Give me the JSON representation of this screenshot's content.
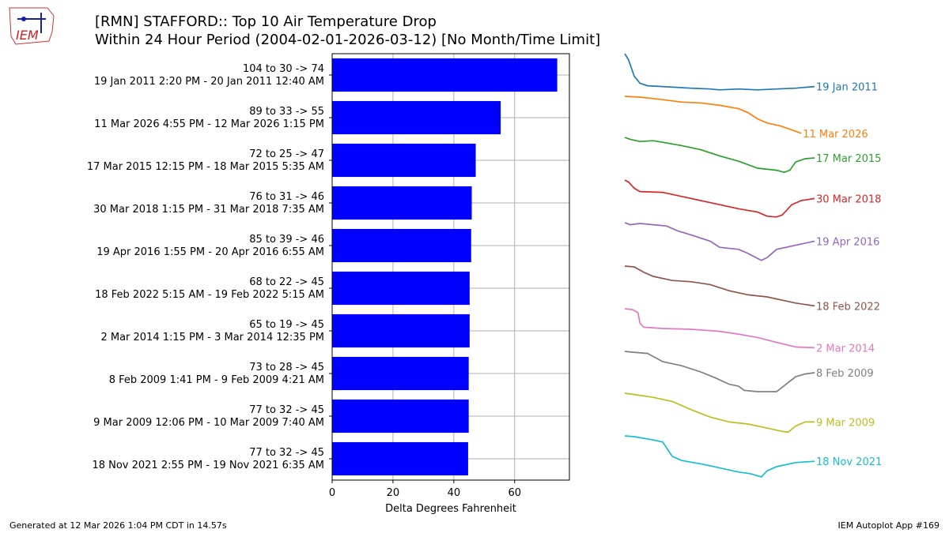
{
  "title": {
    "line1": "[RMN] STAFFORD:: Top 10 Air Temperature Drop",
    "line2": "Within 24 Hour Period (2004-02-01-2026-03-12) [No Month/Time Limit]"
  },
  "logo": {
    "text": "IEM",
    "color": "#cc2222"
  },
  "footer": {
    "left": "Generated at 12 Mar 2026 1:04 PM CDT in 14.57s",
    "right": "IEM Autoplot App #169"
  },
  "chart_data": {
    "type": "bar",
    "orientation": "horizontal",
    "xlabel": "Delta Degrees Fahrenheit",
    "xlim": [
      0,
      78
    ],
    "xticks": [
      0,
      20,
      40,
      60
    ],
    "grid": true,
    "bar_color": "#0000ff",
    "categories": [
      {
        "line1": "104 to 30 -> 74",
        "line2": "19 Jan 2011 2:20 PM - 20 Jan 2011 12:40 AM"
      },
      {
        "line1": "89 to 33 -> 55",
        "line2": "11 Mar 2026 4:55 PM - 12 Mar 2026 1:15 PM"
      },
      {
        "line1": "72 to 25 -> 47",
        "line2": "17 Mar 2015 12:15 PM - 18 Mar 2015 5:35 AM"
      },
      {
        "line1": "76 to 31 -> 46",
        "line2": "30 Mar 2018 1:15 PM - 31 Mar 2018 7:35 AM"
      },
      {
        "line1": "85 to 39 -> 46",
        "line2": "19 Apr 2016 1:55 PM - 20 Apr 2016 6:55 AM"
      },
      {
        "line1": "68 to 22 -> 45",
        "line2": "18 Feb 2022 5:15 AM - 19 Feb 2022 5:15 AM"
      },
      {
        "line1": "65 to 19 -> 45",
        "line2": "2 Mar 2014 1:15 PM - 3 Mar 2014 12:35 PM"
      },
      {
        "line1": "73 to 28 -> 45",
        "line2": "8 Feb 2009 1:41 PM - 9 Feb 2009 4:21 AM"
      },
      {
        "line1": "77 to 32 -> 45",
        "line2": "9 Mar 2009 12:06 PM - 10 Mar 2009 7:40 AM"
      },
      {
        "line1": "77 to 32 -> 45",
        "line2": "18 Nov 2021 2:55 PM - 19 Nov 2021 6:35 AM"
      }
    ],
    "values": [
      74,
      55.4,
      47.2,
      45.9,
      45.7,
      45.2,
      45.2,
      44.9,
      44.9,
      44.7
    ],
    "sparklines": [
      {
        "label": "19 Jan 2011",
        "color": "#1f77b4",
        "points": [
          [
            0,
            0
          ],
          [
            0.02,
            0.15
          ],
          [
            0.05,
            0.55
          ],
          [
            0.08,
            0.72
          ],
          [
            0.12,
            0.78
          ],
          [
            0.2,
            0.8
          ],
          [
            0.35,
            0.84
          ],
          [
            0.45,
            0.86
          ],
          [
            0.5,
            0.88
          ],
          [
            0.6,
            0.86
          ],
          [
            0.7,
            0.88
          ],
          [
            0.8,
            0.86
          ],
          [
            0.9,
            0.84
          ],
          [
            0.95,
            0.82
          ],
          [
            1,
            0.8
          ]
        ]
      },
      {
        "label": "11 Mar 2026",
        "color": "#ff7f0e",
        "points": [
          [
            0,
            0
          ],
          [
            0.08,
            0.02
          ],
          [
            0.2,
            0.08
          ],
          [
            0.3,
            0.14
          ],
          [
            0.4,
            0.16
          ],
          [
            0.5,
            0.22
          ],
          [
            0.55,
            0.26
          ],
          [
            0.6,
            0.3
          ],
          [
            0.65,
            0.4
          ],
          [
            0.7,
            0.55
          ],
          [
            0.75,
            0.65
          ],
          [
            0.82,
            0.72
          ],
          [
            0.9,
            0.85
          ],
          [
            0.93,
            0.9
          ]
        ]
      },
      {
        "label": "17 Mar 2015",
        "color": "#2ca02c",
        "points": [
          [
            0,
            0
          ],
          [
            0.03,
            0.05
          ],
          [
            0.08,
            0.1
          ],
          [
            0.15,
            0.08
          ],
          [
            0.2,
            0.12
          ],
          [
            0.3,
            0.2
          ],
          [
            0.4,
            0.3
          ],
          [
            0.5,
            0.45
          ],
          [
            0.6,
            0.58
          ],
          [
            0.7,
            0.75
          ],
          [
            0.8,
            0.8
          ],
          [
            0.84,
            0.85
          ],
          [
            0.87,
            0.8
          ],
          [
            0.9,
            0.6
          ],
          [
            0.95,
            0.52
          ],
          [
            1,
            0.5
          ]
        ]
      },
      {
        "label": "30 Mar 2018",
        "color": "#d62728",
        "points": [
          [
            0,
            0
          ],
          [
            0.02,
            0.05
          ],
          [
            0.05,
            0.2
          ],
          [
            0.08,
            0.28
          ],
          [
            0.2,
            0.3
          ],
          [
            0.3,
            0.4
          ],
          [
            0.4,
            0.5
          ],
          [
            0.5,
            0.6
          ],
          [
            0.6,
            0.7
          ],
          [
            0.7,
            0.78
          ],
          [
            0.75,
            0.88
          ],
          [
            0.8,
            0.9
          ],
          [
            0.83,
            0.85
          ],
          [
            0.88,
            0.6
          ],
          [
            0.93,
            0.5
          ],
          [
            1,
            0.45
          ]
        ]
      },
      {
        "label": "19 Apr 2016",
        "color": "#9467bd",
        "points": [
          [
            0,
            0
          ],
          [
            0.03,
            0.05
          ],
          [
            0.08,
            0.02
          ],
          [
            0.15,
            0.05
          ],
          [
            0.22,
            0.08
          ],
          [
            0.28,
            0.2
          ],
          [
            0.35,
            0.3
          ],
          [
            0.45,
            0.45
          ],
          [
            0.5,
            0.6
          ],
          [
            0.6,
            0.65
          ],
          [
            0.65,
            0.75
          ],
          [
            0.72,
            0.92
          ],
          [
            0.75,
            0.85
          ],
          [
            0.8,
            0.65
          ],
          [
            0.9,
            0.55
          ],
          [
            1,
            0.45
          ]
        ]
      },
      {
        "label": "18 Feb 2022",
        "color": "#8c564b",
        "points": [
          [
            0,
            0
          ],
          [
            0.05,
            0.02
          ],
          [
            0.1,
            0.15
          ],
          [
            0.15,
            0.25
          ],
          [
            0.25,
            0.35
          ],
          [
            0.35,
            0.38
          ],
          [
            0.45,
            0.45
          ],
          [
            0.55,
            0.6
          ],
          [
            0.65,
            0.7
          ],
          [
            0.75,
            0.75
          ],
          [
            0.85,
            0.85
          ],
          [
            0.9,
            0.9
          ],
          [
            1,
            0.97
          ]
        ]
      },
      {
        "label": "2 Mar 2014",
        "color": "#e377c2",
        "points": [
          [
            0,
            0
          ],
          [
            0.04,
            0.02
          ],
          [
            0.07,
            0.1
          ],
          [
            0.08,
            0.35
          ],
          [
            0.1,
            0.45
          ],
          [
            0.2,
            0.48
          ],
          [
            0.35,
            0.5
          ],
          [
            0.5,
            0.55
          ],
          [
            0.6,
            0.62
          ],
          [
            0.7,
            0.7
          ],
          [
            0.8,
            0.82
          ],
          [
            0.9,
            0.93
          ],
          [
            1,
            0.95
          ]
        ]
      },
      {
        "label": "8 Feb 2009",
        "color": "#7f7f7f",
        "points": [
          [
            0,
            0
          ],
          [
            0.04,
            0.02
          ],
          [
            0.12,
            0.05
          ],
          [
            0.2,
            0.25
          ],
          [
            0.3,
            0.35
          ],
          [
            0.4,
            0.5
          ],
          [
            0.48,
            0.65
          ],
          [
            0.55,
            0.8
          ],
          [
            0.6,
            0.85
          ],
          [
            0.63,
            0.95
          ],
          [
            0.7,
            0.98
          ],
          [
            0.8,
            0.98
          ],
          [
            0.85,
            0.8
          ],
          [
            0.9,
            0.62
          ],
          [
            0.95,
            0.55
          ],
          [
            1,
            0.52
          ]
        ]
      },
      {
        "label": "9 Mar 2009",
        "color": "#bcbd22",
        "points": [
          [
            0,
            0
          ],
          [
            0.05,
            0.03
          ],
          [
            0.15,
            0.1
          ],
          [
            0.25,
            0.2
          ],
          [
            0.35,
            0.4
          ],
          [
            0.45,
            0.58
          ],
          [
            0.55,
            0.7
          ],
          [
            0.65,
            0.75
          ],
          [
            0.75,
            0.85
          ],
          [
            0.82,
            0.92
          ],
          [
            0.86,
            0.95
          ],
          [
            0.9,
            0.8
          ],
          [
            0.95,
            0.7
          ],
          [
            1,
            0.7
          ]
        ]
      },
      {
        "label": "18 Nov 2021",
        "color": "#17becf",
        "points": [
          [
            0,
            0
          ],
          [
            0.05,
            0.02
          ],
          [
            0.15,
            0.1
          ],
          [
            0.2,
            0.15
          ],
          [
            0.25,
            0.5
          ],
          [
            0.3,
            0.6
          ],
          [
            0.4,
            0.68
          ],
          [
            0.5,
            0.78
          ],
          [
            0.6,
            0.88
          ],
          [
            0.66,
            0.92
          ],
          [
            0.72,
            1.0
          ],
          [
            0.75,
            0.85
          ],
          [
            0.8,
            0.75
          ],
          [
            0.9,
            0.65
          ],
          [
            1,
            0.62
          ]
        ]
      }
    ]
  }
}
